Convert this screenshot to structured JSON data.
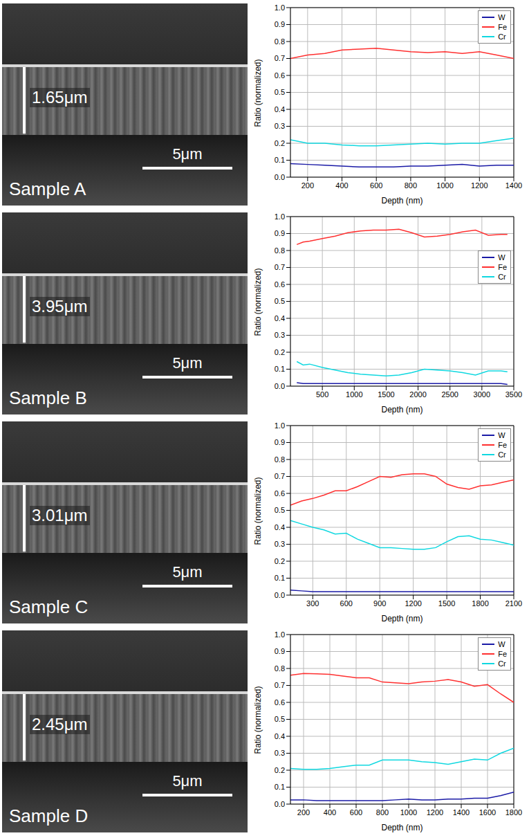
{
  "chart_data": [
    {
      "type": "line",
      "xlabel": "Depth (nm)",
      "ylabel": "Ratio (normalized)",
      "xlim": [
        100,
        1400
      ],
      "xticks": [
        200,
        400,
        600,
        800,
        1000,
        1200,
        1400
      ],
      "ylim": [
        0,
        1
      ],
      "yticks": [
        {
          "value": 0,
          "label": "0.0"
        },
        0.1,
        0.2,
        0.3,
        0.4,
        0.5,
        0.6,
        0.7,
        0.8,
        0.9,
        {
          "value": 1,
          "label": "1.0"
        }
      ],
      "grid": true,
      "legend": "upper right",
      "x": [
        100,
        200,
        300,
        400,
        500,
        600,
        700,
        800,
        900,
        1000,
        1100,
        1200,
        1300,
        1400
      ],
      "series": [
        {
          "name": "W",
          "color": "#1a1aa6",
          "values": [
            0.08,
            0.075,
            0.07,
            0.065,
            0.06,
            0.06,
            0.06,
            0.065,
            0.065,
            0.07,
            0.075,
            0.065,
            0.07,
            0.07
          ]
        },
        {
          "name": "Fe",
          "color": "#ff3030",
          "values": [
            0.7,
            0.72,
            0.73,
            0.75,
            0.755,
            0.76,
            0.75,
            0.74,
            0.735,
            0.74,
            0.73,
            0.74,
            0.72,
            0.7
          ]
        },
        {
          "name": "Cr",
          "color": "#10d8e0",
          "values": [
            0.22,
            0.2,
            0.2,
            0.19,
            0.185,
            0.185,
            0.19,
            0.195,
            0.2,
            0.195,
            0.2,
            0.2,
            0.215,
            0.23
          ]
        }
      ]
    },
    {
      "type": "line",
      "xlabel": "Depth (nm)",
      "ylabel": "Ratio (normalized)",
      "xlim": [
        0,
        3500
      ],
      "xticks": [
        500,
        1000,
        1500,
        2000,
        2500,
        3000,
        3500
      ],
      "ylim": [
        0,
        1
      ],
      "yticks": [
        {
          "value": 0,
          "label": "0.0"
        },
        0.1,
        0.2,
        0.3,
        0.4,
        0.5,
        0.6,
        0.7,
        0.8,
        0.9,
        {
          "value": 1,
          "label": "1.0"
        }
      ],
      "grid": true,
      "legend": "right",
      "x": [
        100,
        200,
        300,
        500,
        700,
        900,
        1100,
        1300,
        1500,
        1700,
        1900,
        2100,
        2300,
        2500,
        2700,
        2900,
        3100,
        3300,
        3400
      ],
      "series": [
        {
          "name": "W",
          "color": "#1a1aa6",
          "values": [
            0.02,
            0.015,
            0.015,
            0.015,
            0.015,
            0.015,
            0.015,
            0.015,
            0.015,
            0.015,
            0.015,
            0.015,
            0.015,
            0.015,
            0.015,
            0.015,
            0.015,
            0.015,
            0.01
          ]
        },
        {
          "name": "Fe",
          "color": "#ff3030",
          "values": [
            0.835,
            0.85,
            0.855,
            0.87,
            0.885,
            0.905,
            0.915,
            0.92,
            0.92,
            0.925,
            0.905,
            0.88,
            0.885,
            0.895,
            0.91,
            0.92,
            0.89,
            0.895,
            0.895
          ]
        },
        {
          "name": "Cr",
          "color": "#10d8e0",
          "values": [
            0.145,
            0.125,
            0.13,
            0.11,
            0.095,
            0.08,
            0.07,
            0.065,
            0.06,
            0.065,
            0.08,
            0.1,
            0.095,
            0.09,
            0.08,
            0.065,
            0.09,
            0.09,
            0.085
          ]
        }
      ]
    },
    {
      "type": "line",
      "xlabel": "Depth (nm)",
      "ylabel": "Ratio (normalized)",
      "xlim": [
        100,
        2100
      ],
      "xticks": [
        300,
        600,
        900,
        1200,
        1500,
        1800,
        2100
      ],
      "ylim": [
        0,
        1
      ],
      "yticks": [
        {
          "value": 0,
          "label": "0.0"
        },
        0.1,
        0.2,
        0.3,
        0.4,
        0.5,
        0.6,
        0.7,
        0.8,
        0.9,
        {
          "value": 1,
          "label": "1.0"
        }
      ],
      "grid": true,
      "legend": "upper right",
      "x": [
        100,
        200,
        300,
        400,
        500,
        600,
        700,
        800,
        900,
        1000,
        1100,
        1200,
        1300,
        1400,
        1500,
        1600,
        1700,
        1800,
        1900,
        2000,
        2100
      ],
      "series": [
        {
          "name": "W",
          "color": "#1a1aa6",
          "values": [
            0.03,
            0.025,
            0.02,
            0.02,
            0.02,
            0.02,
            0.02,
            0.02,
            0.02,
            0.02,
            0.02,
            0.02,
            0.02,
            0.02,
            0.02,
            0.02,
            0.02,
            0.02,
            0.02,
            0.02,
            0.02
          ]
        },
        {
          "name": "Fe",
          "color": "#ff3030",
          "values": [
            0.53,
            0.555,
            0.57,
            0.59,
            0.615,
            0.615,
            0.64,
            0.67,
            0.7,
            0.695,
            0.71,
            0.715,
            0.715,
            0.7,
            0.655,
            0.635,
            0.625,
            0.645,
            0.65,
            0.665,
            0.68
          ]
        },
        {
          "name": "Cr",
          "color": "#10d8e0",
          "values": [
            0.44,
            0.42,
            0.4,
            0.385,
            0.36,
            0.365,
            0.33,
            0.305,
            0.28,
            0.28,
            0.275,
            0.27,
            0.27,
            0.28,
            0.315,
            0.345,
            0.35,
            0.33,
            0.325,
            0.31,
            0.295
          ]
        }
      ]
    },
    {
      "type": "line",
      "xlabel": "Depth (nm)",
      "ylabel": "Ratio (normalized)",
      "xlim": [
        100,
        1800
      ],
      "xticks": [
        200,
        400,
        600,
        800,
        1000,
        1200,
        1400,
        1600,
        1800
      ],
      "ylim": [
        0,
        1
      ],
      "yticks": [
        {
          "value": 0,
          "label": "0.0"
        },
        0.1,
        0.2,
        0.3,
        0.4,
        0.5,
        0.6,
        0.7,
        0.8,
        0.9,
        {
          "value": 1,
          "label": "1.0"
        }
      ],
      "grid": true,
      "legend": "upper right",
      "x": [
        100,
        200,
        300,
        400,
        500,
        600,
        700,
        800,
        900,
        1000,
        1100,
        1200,
        1300,
        1400,
        1500,
        1600,
        1700,
        1800
      ],
      "series": [
        {
          "name": "W",
          "color": "#1a1aa6",
          "values": [
            0.025,
            0.025,
            0.02,
            0.02,
            0.02,
            0.02,
            0.02,
            0.02,
            0.025,
            0.03,
            0.025,
            0.025,
            0.03,
            0.03,
            0.035,
            0.035,
            0.05,
            0.07
          ]
        },
        {
          "name": "Fe",
          "color": "#ff3030",
          "values": [
            0.76,
            0.77,
            0.768,
            0.765,
            0.755,
            0.745,
            0.745,
            0.72,
            0.715,
            0.71,
            0.72,
            0.725,
            0.735,
            0.72,
            0.695,
            0.705,
            0.65,
            0.6
          ]
        },
        {
          "name": "Cr",
          "color": "#10d8e0",
          "values": [
            0.21,
            0.205,
            0.205,
            0.21,
            0.22,
            0.23,
            0.23,
            0.26,
            0.26,
            0.26,
            0.25,
            0.245,
            0.235,
            0.25,
            0.265,
            0.26,
            0.3,
            0.33
          ]
        }
      ]
    }
  ],
  "images": [
    {
      "label": "Sample A",
      "thickness": "1.65μm",
      "scale_bar": "5μm"
    },
    {
      "label": "Sample B",
      "thickness": "3.95μm",
      "scale_bar": "5μm"
    },
    {
      "label": "Sample C",
      "thickness": "3.01μm",
      "scale_bar": "5μm"
    },
    {
      "label": "Sample D",
      "thickness": "2.45μm",
      "scale_bar": "5μm"
    }
  ]
}
